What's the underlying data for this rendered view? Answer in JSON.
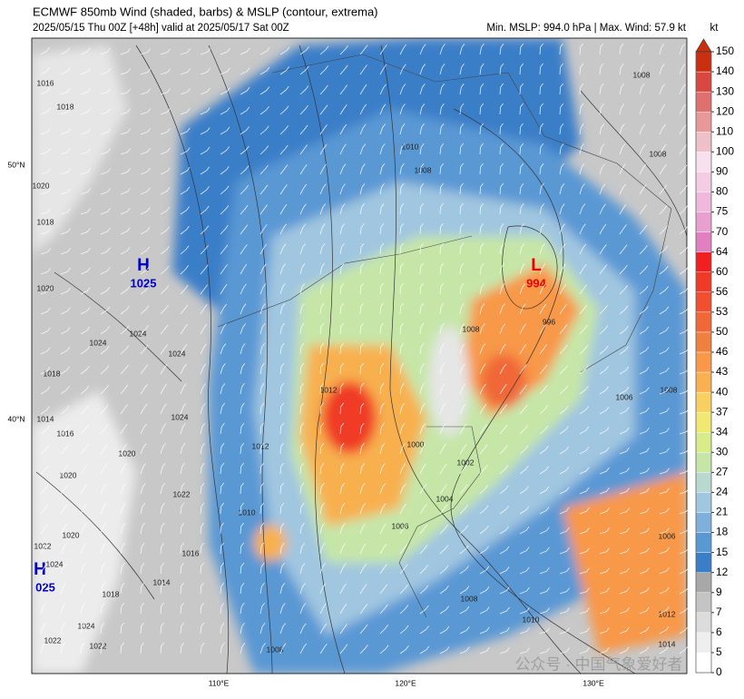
{
  "header": {
    "title": "ECMWF 850mb Wind (shaded, barbs) & MSLP (contour, extrema)",
    "subtitle": "2025/05/15 Thu 00Z [+48h] valid at 2025/05/17 Sat 00Z",
    "stats": "Min. MSLP: 994.0 hPa | Max. Wind: 57.9 kt"
  },
  "axes": {
    "lat_labels": [
      "50°N",
      "40°N"
    ],
    "lon_labels": [
      "110°E",
      "120°E",
      "130°E"
    ]
  },
  "extrema": [
    {
      "symbol": "H",
      "value": "1025"
    },
    {
      "symbol": "L",
      "value": "994"
    },
    {
      "symbol": "H",
      "value": "025"
    }
  ],
  "contour_labels": [
    "1016",
    "1018",
    "1020",
    "1018",
    "1020",
    "1024",
    "1024",
    "1024",
    "1018",
    "1014",
    "1016",
    "1020",
    "1024",
    "1020",
    "1022",
    "1020",
    "1022",
    "1024",
    "1016",
    "1014",
    "1018",
    "1024",
    "1022",
    "1022",
    "1008",
    "1010",
    "1012",
    "1012",
    "1010",
    "1008",
    "1008",
    "1000",
    "1002",
    "1004",
    "1006",
    "1010",
    "1008",
    "996",
    "1008",
    "1008",
    "1006",
    "1008",
    "1006",
    "1012",
    "1014"
  ],
  "colorbar": {
    "unit": "kt",
    "ticks": [
      0,
      5,
      6,
      7,
      9,
      12,
      15,
      18,
      21,
      24,
      27,
      30,
      34,
      37,
      40,
      43,
      46,
      50,
      53,
      56,
      60,
      64,
      70,
      75,
      80,
      90,
      100,
      110,
      120,
      130,
      140,
      150
    ],
    "colors": [
      "#ffffff",
      "#eeeeee",
      "#dcdcdc",
      "#c4c4c4",
      "#a8a8a8",
      "#3a7ec8",
      "#5a98d4",
      "#7fb0dc",
      "#a0c6e0",
      "#b8d8d0",
      "#c6e6a8",
      "#d8ec8a",
      "#f0e870",
      "#f8d060",
      "#f8b050",
      "#f89848",
      "#f08040",
      "#f06838",
      "#f05030",
      "#f03a28",
      "#f02020",
      "#e080c0",
      "#e8a0d0",
      "#f0b8dc",
      "#f4cce4",
      "#f8e0ee",
      "#f0c0c8",
      "#e89898",
      "#e07070",
      "#d84840",
      "#c83010"
    ]
  },
  "watermark": "公众号 · 中国气象爱好者"
}
